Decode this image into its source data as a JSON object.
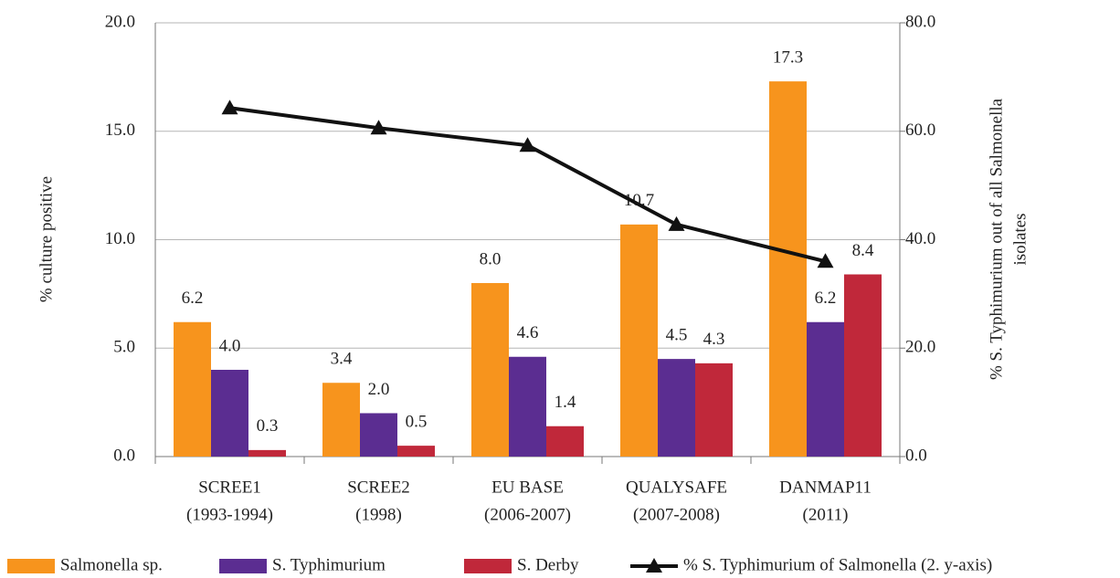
{
  "chart_data": {
    "type": "bar",
    "categories": [
      [
        "SCREE1",
        "(1993-1994)"
      ],
      [
        "SCREE2",
        "(1998)"
      ],
      [
        "EU BASE",
        "(2006-2007)"
      ],
      [
        "QUALYSAFE",
        "(2007-2008)"
      ],
      [
        "DANMAP11",
        "(2011)"
      ]
    ],
    "ylabel": "% culture positive",
    "y2label": [
      "% S. Typhimurium out of all Salmonella",
      "isolates"
    ],
    "ylim": [
      0,
      20
    ],
    "yticks": [
      {
        "value": 0,
        "label": "0.0"
      },
      {
        "value": 5,
        "label": "5.0"
      },
      {
        "value": 10,
        "label": "10.0"
      },
      {
        "value": 15,
        "label": "15.0"
      },
      {
        "value": 20,
        "label": "20.0"
      }
    ],
    "y2lim": [
      0,
      80
    ],
    "y2ticks": [
      {
        "value": 0,
        "label": "0.0"
      },
      {
        "value": 20,
        "label": "20.0"
      },
      {
        "value": 40,
        "label": "40.0"
      },
      {
        "value": 60,
        "label": "60.0"
      },
      {
        "value": 80,
        "label": "80.0"
      }
    ],
    "grid": true,
    "legend": "bottom",
    "series": [
      {
        "name": "Salmonella sp.",
        "color": "#f7941d",
        "values": [
          6.2,
          3.4,
          8.0,
          10.7,
          17.3
        ],
        "value_labels": [
          "6.2",
          "3.4",
          "8.0",
          "10.7",
          "17.3"
        ]
      },
      {
        "name": "S. Typhimurium",
        "color": "#5b2d91",
        "values": [
          4.0,
          2.0,
          4.6,
          4.5,
          6.2
        ],
        "value_labels": [
          "4.0",
          "2.0",
          "4.6",
          "4.5",
          "6.2"
        ]
      },
      {
        "name": "S. Derby",
        "color": "#c0283a",
        "values": [
          0.3,
          0.5,
          1.4,
          4.3,
          8.4
        ],
        "value_labels": [
          "0.3",
          "0.5",
          "1.4",
          "4.3",
          "8.4"
        ]
      },
      {
        "name": "% S. Typhimurium of Salmonella (2. y-axis)",
        "color": "#111111",
        "type": "line",
        "axis": "y2",
        "values": [
          64.3,
          60.6,
          57.4,
          42.8,
          36.0
        ]
      }
    ]
  }
}
